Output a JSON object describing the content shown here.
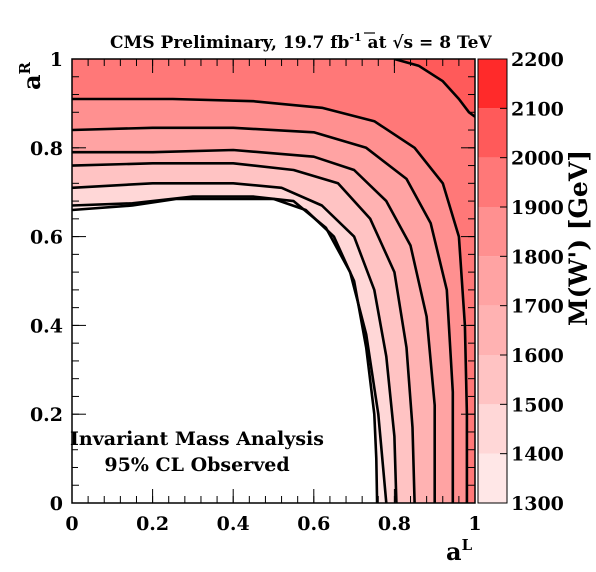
{
  "chart_data": {
    "type": "heatmap",
    "title_main": "CMS Preliminary, 19.7 fb",
    "title_sup": "-1",
    "title_at": " at ",
    "title_sqrt_s": "s",
    "title_energy": " = 8 TeV",
    "xlabel_base": "a",
    "xlabel_sup": "L",
    "ylabel_base": "a",
    "ylabel_sup": "R",
    "zlabel": "M(W') [GeV]",
    "xlim": [
      0,
      1
    ],
    "ylim": [
      0,
      1
    ],
    "zlim": [
      1300,
      2200
    ],
    "x_ticks": [
      "0",
      "0.2",
      "0.4",
      "0.6",
      "0.8",
      "1"
    ],
    "y_ticks": [
      "0",
      "0.2",
      "0.4",
      "0.6",
      "0.8",
      "1"
    ],
    "z_ticks": [
      "1300",
      "1400",
      "1500",
      "1600",
      "1700",
      "1800",
      "1900",
      "2000",
      "2100",
      "2200"
    ],
    "z_levels": [
      1300,
      1400,
      1500,
      1600,
      1700,
      1800,
      1900,
      2000,
      2100,
      2200
    ],
    "level_colors": [
      "#ffe7e7",
      "#ffd7d7",
      "#ffc3c3",
      "#ffb2b2",
      "#ffa3a3",
      "#ff9090",
      "#ff7878",
      "#ff5a5a",
      "#ff2a2a"
    ],
    "contour_lines": [
      {
        "level": 1300,
        "points": [
          [
            0,
            0.66
          ],
          [
            0.15,
            0.67
          ],
          [
            0.26,
            0.685
          ],
          [
            0.4,
            0.685
          ],
          [
            0.5,
            0.685
          ],
          [
            0.58,
            0.66
          ],
          [
            0.65,
            0.6
          ],
          [
            0.7,
            0.5
          ],
          [
            0.73,
            0.35
          ],
          [
            0.75,
            0.2
          ],
          [
            0.755,
            0.1
          ],
          [
            0.757,
            0
          ]
        ]
      },
      {
        "level": 1400,
        "points": [
          [
            0,
            0.67
          ],
          [
            0.15,
            0.675
          ],
          [
            0.3,
            0.69
          ],
          [
            0.45,
            0.69
          ],
          [
            0.55,
            0.68
          ],
          [
            0.63,
            0.62
          ],
          [
            0.69,
            0.52
          ],
          [
            0.73,
            0.38
          ],
          [
            0.76,
            0.2
          ],
          [
            0.775,
            0.05
          ],
          [
            0.78,
            0
          ]
        ]
      },
      {
        "level": 1500,
        "points": [
          [
            0,
            0.71
          ],
          [
            0.2,
            0.72
          ],
          [
            0.4,
            0.72
          ],
          [
            0.52,
            0.71
          ],
          [
            0.62,
            0.67
          ],
          [
            0.7,
            0.6
          ],
          [
            0.75,
            0.48
          ],
          [
            0.78,
            0.33
          ],
          [
            0.8,
            0.15
          ],
          [
            0.805,
            0
          ]
        ]
      },
      {
        "level": 1600,
        "points": [
          [
            0,
            0.76
          ],
          [
            0.2,
            0.765
          ],
          [
            0.4,
            0.765
          ],
          [
            0.55,
            0.75
          ],
          [
            0.66,
            0.72
          ],
          [
            0.74,
            0.64
          ],
          [
            0.8,
            0.52
          ],
          [
            0.83,
            0.35
          ],
          [
            0.845,
            0.17
          ],
          [
            0.85,
            0
          ]
        ]
      },
      {
        "level": 1700,
        "points": [
          [
            0,
            0.79
          ],
          [
            0.2,
            0.79
          ],
          [
            0.4,
            0.795
          ],
          [
            0.6,
            0.78
          ],
          [
            0.7,
            0.75
          ],
          [
            0.78,
            0.68
          ],
          [
            0.84,
            0.58
          ],
          [
            0.88,
            0.42
          ],
          [
            0.9,
            0.22
          ],
          [
            0.9,
            0
          ]
        ]
      },
      {
        "level": 1800,
        "points": [
          [
            0,
            0.84
          ],
          [
            0.2,
            0.845
          ],
          [
            0.4,
            0.845
          ],
          [
            0.6,
            0.835
          ],
          [
            0.73,
            0.8
          ],
          [
            0.83,
            0.73
          ],
          [
            0.89,
            0.63
          ],
          [
            0.93,
            0.48
          ],
          [
            0.945,
            0.25
          ],
          [
            0.945,
            0
          ]
        ]
      },
      {
        "level": 1900,
        "points": [
          [
            0,
            0.91
          ],
          [
            0.25,
            0.91
          ],
          [
            0.45,
            0.905
          ],
          [
            0.62,
            0.89
          ],
          [
            0.75,
            0.86
          ],
          [
            0.85,
            0.8
          ],
          [
            0.92,
            0.72
          ],
          [
            0.96,
            0.6
          ],
          [
            0.975,
            0.4
          ],
          [
            0.98,
            0.2
          ],
          [
            0.98,
            0
          ]
        ]
      },
      {
        "level": 2000,
        "points": [
          [
            0.8,
            1.0
          ],
          [
            0.86,
            0.985
          ],
          [
            0.92,
            0.95
          ],
          [
            0.96,
            0.91
          ],
          [
            0.985,
            0.88
          ],
          [
            1.0,
            0.87
          ]
        ]
      }
    ],
    "annotation_lines": [
      "Invariant Mass Analysis",
      "95% CL Observed"
    ]
  }
}
